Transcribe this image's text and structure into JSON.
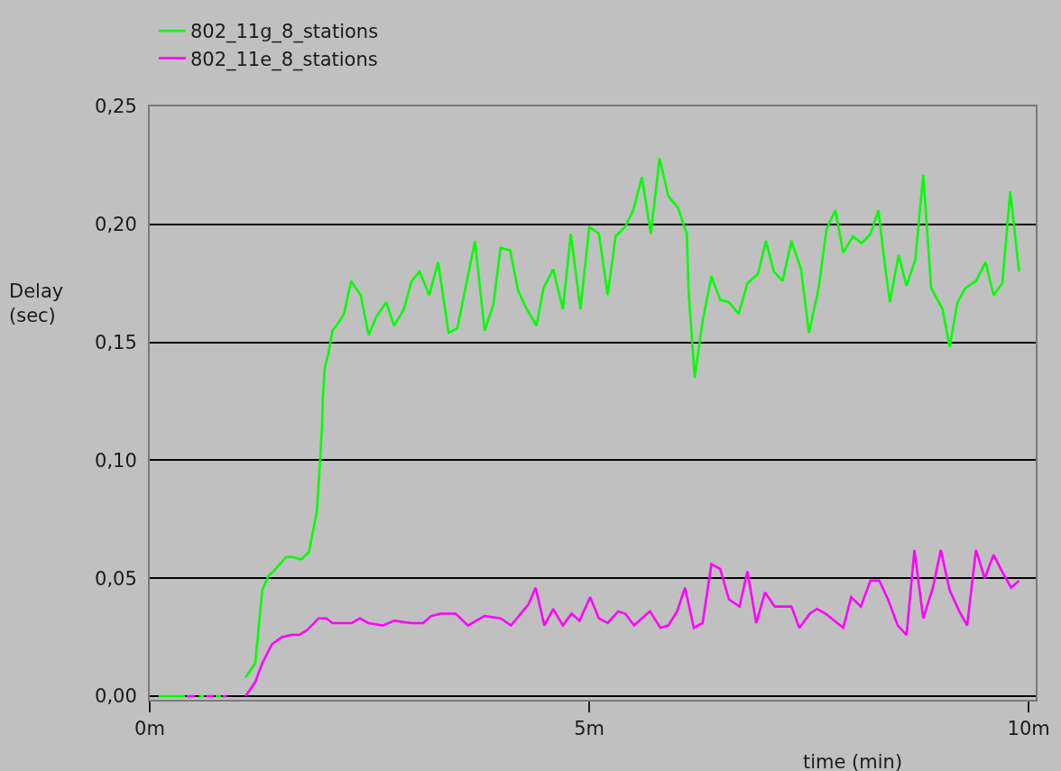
{
  "chart_data": {
    "type": "line",
    "xlabel": "time (min)",
    "ylabel": "Delay\n(sec)",
    "xlim": [
      0,
      10.08
    ],
    "ylim": [
      -0.0015,
      0.25
    ],
    "xticks": [
      {
        "value": 0,
        "label": "0m"
      },
      {
        "value": 5,
        "label": "5m"
      },
      {
        "value": 10,
        "label": "10m"
      }
    ],
    "yticks": [
      {
        "value": 0,
        "label": "0,00"
      },
      {
        "value": 0.05,
        "label": "0,05"
      },
      {
        "value": 0.1,
        "label": "0,10"
      },
      {
        "value": 0.15,
        "label": "0,15"
      },
      {
        "value": 0.2,
        "label": "0,20"
      },
      {
        "value": 0.25,
        "label": "0,25"
      }
    ],
    "grid": "y",
    "legend": "top left",
    "series": [
      {
        "name": "802_11g_8_stations",
        "color": "#00ff00",
        "x": [
          0.1,
          0.4,
          0.48,
          0.56,
          0.62,
          0.7,
          0.75,
          0.81,
          0.95,
          1.09,
          1.2,
          1.28,
          1.35,
          1.41,
          1.55,
          1.63,
          1.72,
          1.81,
          1.9,
          1.94,
          1.96,
          1.97,
          1.99,
          2.03,
          2.08,
          2.14,
          2.21,
          2.29,
          2.4,
          2.49,
          2.58,
          2.69,
          2.78,
          2.89,
          2.98,
          3.07,
          3.18,
          3.28,
          3.4,
          3.5,
          3.7,
          3.81,
          3.91,
          3.99,
          4.1,
          4.19,
          4.29,
          4.4,
          4.48,
          4.59,
          4.7,
          4.79,
          4.9,
          5.0,
          5.11,
          5.21,
          5.3,
          5.41,
          5.5,
          5.6,
          5.7,
          5.8,
          5.9,
          6.01,
          6.11,
          6.13,
          6.2,
          6.29,
          6.39,
          6.49,
          6.59,
          6.7,
          6.8,
          6.92,
          7.01,
          7.1,
          7.2,
          7.3,
          7.41,
          7.5,
          7.61,
          7.7,
          7.8,
          7.89,
          8.0,
          8.1,
          8.2,
          8.29,
          8.36,
          8.42,
          8.52,
          8.61,
          8.71,
          8.8,
          8.89,
          9.02,
          9.1,
          9.19,
          9.28,
          9.4,
          9.51,
          9.6,
          9.7,
          9.79,
          9.89
        ],
        "values": [
          0,
          0,
          null,
          0,
          0,
          null,
          0,
          0,
          null,
          0.008,
          0.014,
          0.045,
          0.051,
          0.053,
          0.059,
          0.059,
          0.058,
          0.061,
          0.078,
          0.101,
          0.115,
          0.127,
          0.139,
          0.145,
          0.155,
          0.158,
          0.162,
          0.176,
          0.17,
          0.153,
          0.161,
          0.167,
          0.157,
          0.164,
          0.176,
          0.18,
          0.17,
          0.184,
          0.154,
          0.156,
          0.193,
          0.155,
          0.166,
          0.19,
          0.189,
          0.172,
          0.164,
          0.157,
          0.173,
          0.181,
          0.164,
          0.196,
          0.164,
          0.199,
          0.196,
          0.17,
          0.195,
          0.199,
          0.206,
          0.22,
          0.196,
          0.228,
          0.212,
          0.207,
          0.196,
          0.172,
          0.135,
          0.159,
          0.178,
          0.168,
          0.167,
          0.162,
          0.175,
          0.179,
          0.193,
          0.18,
          0.176,
          0.193,
          0.181,
          0.154,
          0.173,
          0.198,
          0.206,
          0.188,
          0.195,
          0.192,
          0.196,
          0.206,
          0.184,
          0.167,
          0.187,
          0.174,
          0.185,
          0.221,
          0.173,
          0.164,
          0.148,
          0.167,
          0.173,
          0.176,
          0.184,
          0.17,
          0.175,
          0.214,
          0.18
        ]
      },
      {
        "name": "802_11e_8_stations",
        "color": "#ff00ff",
        "x": [
          0.42,
          0.51,
          0.58,
          0.64,
          0.73,
          0.78,
          0.83,
          0.88,
          0.98,
          1.09,
          1.2,
          1.28,
          1.39,
          1.5,
          1.61,
          1.7,
          1.79,
          1.92,
          2.01,
          2.08,
          2.3,
          2.39,
          2.49,
          2.65,
          2.78,
          2.98,
          3.11,
          3.2,
          3.31,
          3.48,
          3.62,
          3.81,
          3.99,
          4.11,
          4.31,
          4.39,
          4.49,
          4.59,
          4.7,
          4.8,
          4.89,
          5.01,
          5.11,
          5.21,
          5.33,
          5.41,
          5.51,
          5.69,
          5.81,
          5.9,
          6.0,
          6.09,
          6.19,
          6.29,
          6.39,
          6.49,
          6.59,
          6.71,
          6.8,
          6.9,
          7.0,
          7.11,
          7.3,
          7.39,
          7.51,
          7.59,
          7.69,
          7.89,
          7.98,
          8.09,
          8.2,
          8.3,
          8.4,
          8.51,
          8.61,
          8.7,
          8.8,
          8.91,
          9.0,
          9.1,
          9.21,
          9.3,
          9.4,
          9.5,
          9.6,
          9.71,
          9.8,
          9.89
        ],
        "values": [
          0,
          0,
          null,
          0,
          0,
          null,
          0,
          0,
          null,
          0.0,
          0.006,
          0.014,
          0.022,
          0.025,
          0.026,
          0.026,
          0.028,
          0.033,
          0.033,
          0.031,
          0.031,
          0.033,
          0.031,
          0.03,
          0.032,
          0.031,
          0.031,
          0.034,
          0.035,
          0.035,
          0.03,
          0.034,
          0.033,
          0.03,
          0.039,
          0.046,
          0.03,
          0.037,
          0.03,
          0.035,
          0.032,
          0.042,
          0.033,
          0.031,
          0.036,
          0.035,
          0.03,
          0.036,
          0.029,
          0.03,
          0.036,
          0.046,
          0.029,
          0.031,
          0.056,
          0.054,
          0.041,
          0.038,
          0.053,
          0.031,
          0.044,
          0.038,
          0.038,
          0.029,
          0.035,
          0.037,
          0.035,
          0.029,
          0.042,
          0.038,
          0.049,
          0.049,
          0.041,
          0.03,
          0.026,
          0.062,
          0.033,
          0.046,
          0.062,
          0.045,
          0.036,
          0.03,
          0.062,
          0.05,
          0.06,
          0.052,
          0.046,
          0.049
        ]
      }
    ]
  }
}
